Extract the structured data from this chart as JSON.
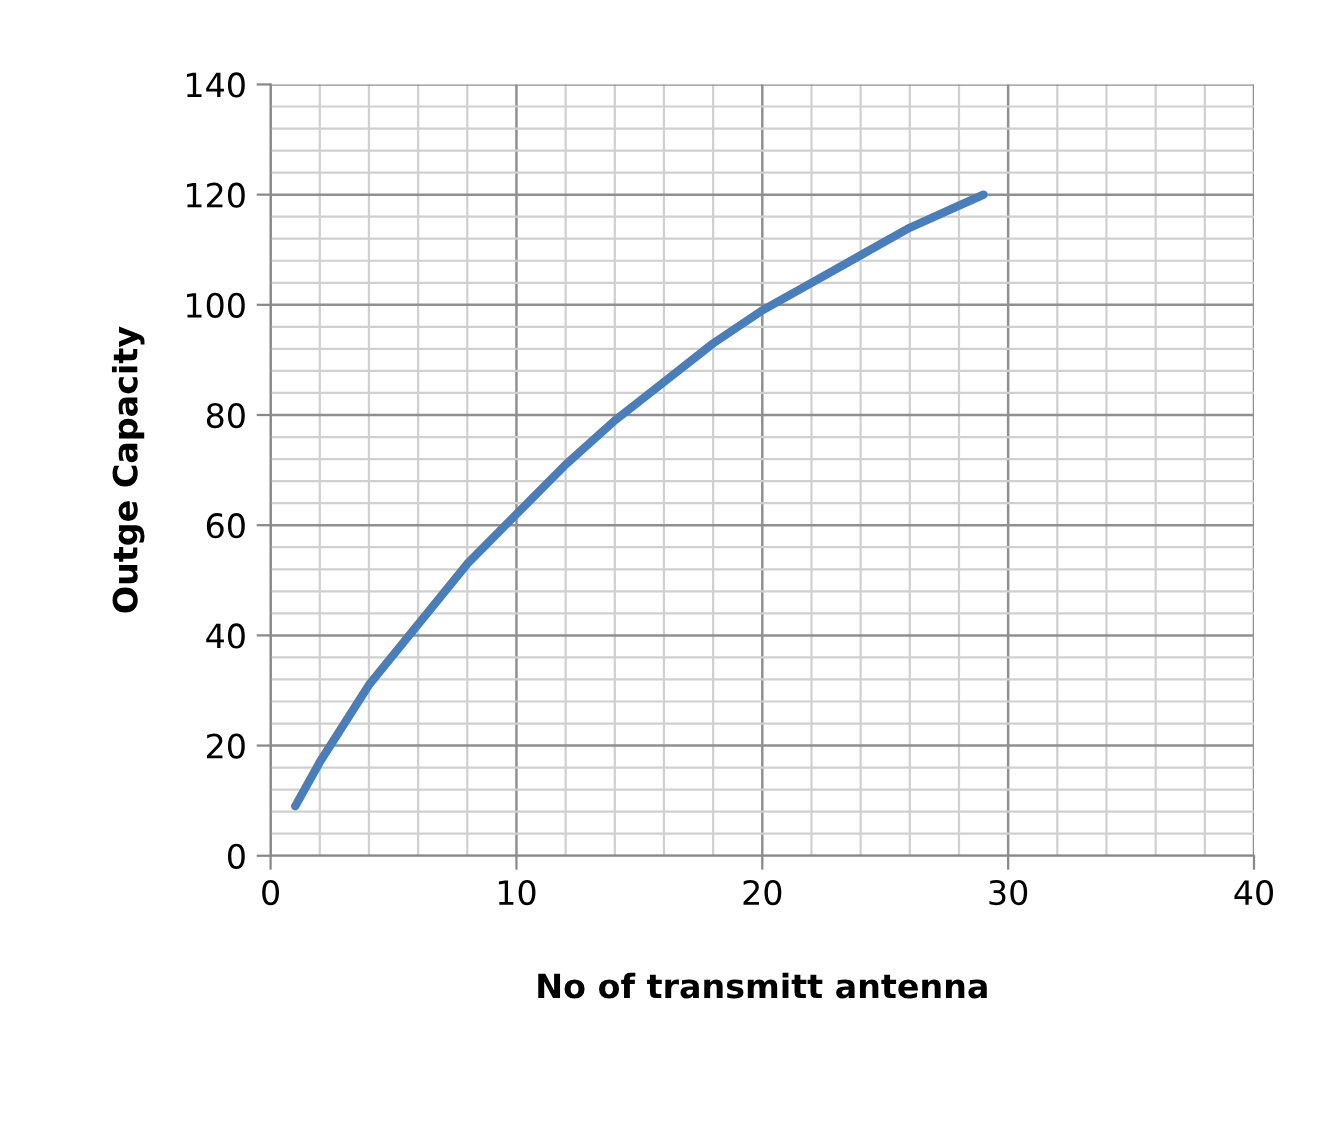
{
  "chart_data": {
    "type": "line",
    "xlabel": "No of transmitt antenna",
    "ylabel": "Outge Capacity",
    "x": [
      1,
      2,
      4,
      6,
      8,
      10,
      12,
      14,
      16,
      18,
      20,
      22,
      24,
      26,
      28,
      29
    ],
    "series": [
      {
        "color": "#4a7ebb",
        "values": [
          9,
          17,
          31,
          42,
          53,
          62,
          71,
          79,
          86,
          93,
          99,
          104,
          109,
          114,
          118,
          120
        ]
      }
    ],
    "xlim": [
      0,
      40
    ],
    "xticks": [
      0,
      10,
      20,
      30,
      40
    ],
    "ylim": [
      0,
      140
    ],
    "yticks": [
      0,
      20,
      40,
      60,
      80,
      100,
      120,
      140
    ],
    "grid": true,
    "marker": "none",
    "line_style": "solid"
  }
}
